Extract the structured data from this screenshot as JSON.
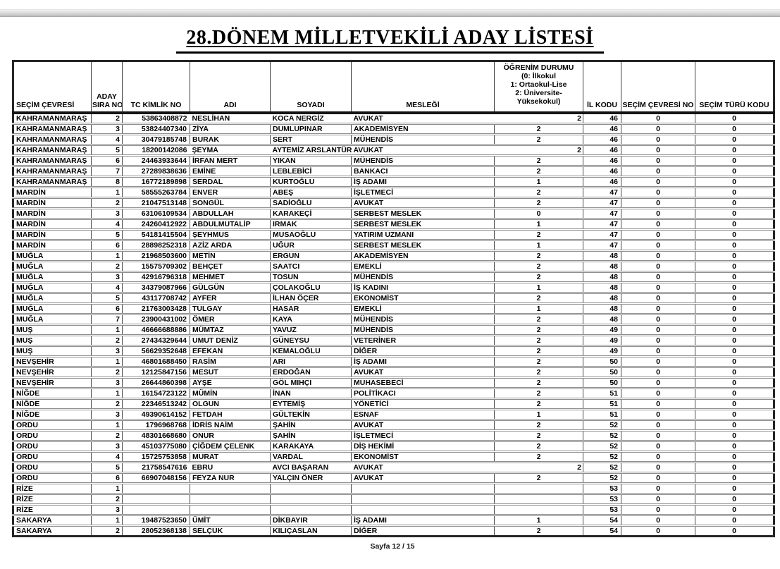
{
  "page": {
    "title": "28.DÖNEM MİLLETVEKİLİ ADAY LİSTESİ",
    "footer": "Sayfa 12 / 15"
  },
  "table": {
    "header": {
      "secim_cevresi": "SEÇİM ÇEVRESİ",
      "aday_sira_line1": "ADAY",
      "aday_sira_line2": "SIRA NO",
      "tc_kimlik": "TC KİMLİK NO",
      "adi": "ADI",
      "soyadi": "SOYADI",
      "meslegi": "MESLEĞİ",
      "ogrenim_lines": [
        "ÖĞRENİM DURUMU",
        "(0: İlkokul",
        "1: Ortaokul-Lise",
        "2: Üniversite-",
        "Yüksekokul)"
      ],
      "il_kodu": "İL KODU",
      "secim_cevresi_no": "SEÇİM ÇEVRESİ NO",
      "secim_turu_kodu": "SEÇİM TÜRÜ KODU"
    },
    "rows": [
      {
        "cevre": "KAHRAMANMARAŞ",
        "sira": "2",
        "tc": "53863408872",
        "adi": "NESLİHAN",
        "soyadi": "KOCA NERGİZ",
        "meslek": "AVUKAT",
        "ogrenim": "2",
        "il": "46",
        "cevre_no": "0",
        "tur": "0",
        "merged": true
      },
      {
        "cevre": "KAHRAMANMARAŞ",
        "sira": "3",
        "tc": "53824407340",
        "adi": "ZİYA",
        "soyadi": "DUMLUPINAR",
        "meslek": "AKADEMİSYEN",
        "ogrenim": "2",
        "il": "46",
        "cevre_no": "0",
        "tur": "0"
      },
      {
        "cevre": "KAHRAMANMARAŞ",
        "sira": "4",
        "tc": "30479185748",
        "adi": "BURAK",
        "soyadi": "SERT",
        "meslek": "MÜHENDİS",
        "ogrenim": "2",
        "il": "46",
        "cevre_no": "0",
        "tur": "0"
      },
      {
        "cevre": "KAHRAMANMARAŞ",
        "sira": "5",
        "tc": "18200142086",
        "adi": "ŞEYMA",
        "soyadi": "AYTEMİZ ARSLANTÜRK",
        "meslek": "AVUKAT",
        "ogrenim": "2",
        "il": "46",
        "cevre_no": "0",
        "tur": "0",
        "merged": true
      },
      {
        "cevre": "KAHRAMANMARAŞ",
        "sira": "6",
        "tc": "24463933644",
        "adi": "İRFAN MERT",
        "soyadi": "YIKAN",
        "meslek": "MÜHENDİS",
        "ogrenim": "2",
        "il": "46",
        "cevre_no": "0",
        "tur": "0"
      },
      {
        "cevre": "KAHRAMANMARAŞ",
        "sira": "7",
        "tc": "27289838636",
        "adi": "EMİNE",
        "soyadi": "LEBLEBİCİ",
        "meslek": "BANKACI",
        "ogrenim": "2",
        "il": "46",
        "cevre_no": "0",
        "tur": "0"
      },
      {
        "cevre": "KAHRAMANMARAŞ",
        "sira": "8",
        "tc": "16772189898",
        "adi": "SERDAL",
        "soyadi": "KURTOĞLU",
        "meslek": "İŞ ADAMI",
        "ogrenim": "1",
        "il": "46",
        "cevre_no": "0",
        "tur": "0"
      },
      {
        "cevre": "MARDİN",
        "sira": "1",
        "tc": "58555263784",
        "adi": "ENVER",
        "soyadi": "ABEŞ",
        "meslek": "İŞLETMECİ",
        "ogrenim": "2",
        "il": "47",
        "cevre_no": "0",
        "tur": "0"
      },
      {
        "cevre": "MARDİN",
        "sira": "2",
        "tc": "21047513148",
        "adi": "SONGÜL",
        "soyadi": "SADİOĞLU",
        "meslek": "AVUKAT",
        "ogrenim": "2",
        "il": "47",
        "cevre_no": "0",
        "tur": "0"
      },
      {
        "cevre": "MARDİN",
        "sira": "3",
        "tc": "63106109534",
        "adi": "ABDULLAH",
        "soyadi": "KARAKEÇİ",
        "meslek": "SERBEST MESLEK",
        "ogrenim": "0",
        "il": "47",
        "cevre_no": "0",
        "tur": "0"
      },
      {
        "cevre": "MARDİN",
        "sira": "4",
        "tc": "24260412922",
        "adi": "ABDULMUTALİP",
        "soyadi": "IRMAK",
        "meslek": "SERBEST MESLEK",
        "ogrenim": "1",
        "il": "47",
        "cevre_no": "0",
        "tur": "0"
      },
      {
        "cevre": "MARDİN",
        "sira": "5",
        "tc": "54181415504",
        "adi": "ŞEYHMUS",
        "soyadi": "MUSAOĞLU",
        "meslek": "YATIRIM UZMANI",
        "ogrenim": "2",
        "il": "47",
        "cevre_no": "0",
        "tur": "0"
      },
      {
        "cevre": "MARDİN",
        "sira": "6",
        "tc": "28898252318",
        "adi": "AZİZ ARDA",
        "soyadi": "UĞUR",
        "meslek": "SERBEST MESLEK",
        "ogrenim": "1",
        "il": "47",
        "cevre_no": "0",
        "tur": "0"
      },
      {
        "cevre": "MUĞLA",
        "sira": "1",
        "tc": "21968503600",
        "adi": "METİN",
        "soyadi": "ERGUN",
        "meslek": "AKADEMİSYEN",
        "ogrenim": "2",
        "il": "48",
        "cevre_no": "0",
        "tur": "0"
      },
      {
        "cevre": "MUĞLA",
        "sira": "2",
        "tc": "15575709302",
        "adi": "BEHÇET",
        "soyadi": "SAATCI",
        "meslek": "EMEKLİ",
        "ogrenim": "2",
        "il": "48",
        "cevre_no": "0",
        "tur": "0"
      },
      {
        "cevre": "MUĞLA",
        "sira": "3",
        "tc": "42916796318",
        "adi": "MEHMET",
        "soyadi": "TOSUN",
        "meslek": "MÜHENDİS",
        "ogrenim": "2",
        "il": "48",
        "cevre_no": "0",
        "tur": "0"
      },
      {
        "cevre": "MUĞLA",
        "sira": "4",
        "tc": "34379087966",
        "adi": "GÜLGÜN",
        "soyadi": "ÇOLAKOĞLU",
        "meslek": "İŞ KADINI",
        "ogrenim": "1",
        "il": "48",
        "cevre_no": "0",
        "tur": "0"
      },
      {
        "cevre": "MUĞLA",
        "sira": "5",
        "tc": "43117708742",
        "adi": "AYFER",
        "soyadi": "İLHAN ÖÇER",
        "meslek": "EKONOMİST",
        "ogrenim": "2",
        "il": "48",
        "cevre_no": "0",
        "tur": "0"
      },
      {
        "cevre": "MUĞLA",
        "sira": "6",
        "tc": "21763003428",
        "adi": "TULGAY",
        "soyadi": "HASAR",
        "meslek": "EMEKLİ",
        "ogrenim": "1",
        "il": "48",
        "cevre_no": "0",
        "tur": "0"
      },
      {
        "cevre": "MUĞLA",
        "sira": "7",
        "tc": "23900431002",
        "adi": "ÖMER",
        "soyadi": "KAYA",
        "meslek": "MÜHENDİS",
        "ogrenim": "2",
        "il": "48",
        "cevre_no": "0",
        "tur": "0"
      },
      {
        "cevre": "MUŞ",
        "sira": "1",
        "tc": "46666688886",
        "adi": "MÜMTAZ",
        "soyadi": "YAVUZ",
        "meslek": "MÜHENDİS",
        "ogrenim": "2",
        "il": "49",
        "cevre_no": "0",
        "tur": "0"
      },
      {
        "cevre": "MUŞ",
        "sira": "2",
        "tc": "27434329644",
        "adi": "UMUT DENİZ",
        "soyadi": "GÜNEYSU",
        "meslek": "VETERİNER",
        "ogrenim": "2",
        "il": "49",
        "cevre_no": "0",
        "tur": "0"
      },
      {
        "cevre": "MUŞ",
        "sira": "3",
        "tc": "56629352648",
        "adi": "EFEKAN",
        "soyadi": "KEMALOĞLU",
        "meslek": "DİĞER",
        "ogrenim": "2",
        "il": "49",
        "cevre_no": "0",
        "tur": "0"
      },
      {
        "cevre": "NEVŞEHİR",
        "sira": "1",
        "tc": "46801688450",
        "adi": "RASİM",
        "soyadi": "ARI",
        "meslek": "İŞ ADAMI",
        "ogrenim": "2",
        "il": "50",
        "cevre_no": "0",
        "tur": "0"
      },
      {
        "cevre": "NEVŞEHİR",
        "sira": "2",
        "tc": "12125847156",
        "adi": "MESUT",
        "soyadi": "ERDOĞAN",
        "meslek": "AVUKAT",
        "ogrenim": "2",
        "il": "50",
        "cevre_no": "0",
        "tur": "0"
      },
      {
        "cevre": "NEVŞEHİR",
        "sira": "3",
        "tc": "26644860398",
        "adi": "AYŞE",
        "soyadi": "GÖL MIHÇI",
        "meslek": "MUHASEBECİ",
        "ogrenim": "2",
        "il": "50",
        "cevre_no": "0",
        "tur": "0"
      },
      {
        "cevre": "NİĞDE",
        "sira": "1",
        "tc": "16154723122",
        "adi": "MÜMİN",
        "soyadi": "İNAN",
        "meslek": "POLİTİKACI",
        "ogrenim": "2",
        "il": "51",
        "cevre_no": "0",
        "tur": "0"
      },
      {
        "cevre": "NİĞDE",
        "sira": "2",
        "tc": "22346513242",
        "adi": "OLGUN",
        "soyadi": "EYTEMİŞ",
        "meslek": "YÖNETİCİ",
        "ogrenim": "2",
        "il": "51",
        "cevre_no": "0",
        "tur": "0"
      },
      {
        "cevre": "NİĞDE",
        "sira": "3",
        "tc": "49390614152",
        "adi": "FETDAH",
        "soyadi": "GÜLTEKİN",
        "meslek": "ESNAF",
        "ogrenim": "1",
        "il": "51",
        "cevre_no": "0",
        "tur": "0"
      },
      {
        "cevre": "ORDU",
        "sira": "1",
        "tc": "1796968768",
        "adi": "İDRİS NAİM",
        "soyadi": "ŞAHİN",
        "meslek": "AVUKAT",
        "ogrenim": "2",
        "il": "52",
        "cevre_no": "0",
        "tur": "0"
      },
      {
        "cevre": "ORDU",
        "sira": "2",
        "tc": "48301668680",
        "adi": "ONUR",
        "soyadi": "ŞAHİN",
        "meslek": "İŞLETMECİ",
        "ogrenim": "2",
        "il": "52",
        "cevre_no": "0",
        "tur": "0"
      },
      {
        "cevre": "ORDU",
        "sira": "3",
        "tc": "45103775080",
        "adi": "ÇİĞDEM ÇELENK",
        "soyadi": "KARAKAYA",
        "meslek": "DİŞ HEKİMİ",
        "ogrenim": "2",
        "il": "52",
        "cevre_no": "0",
        "tur": "0"
      },
      {
        "cevre": "ORDU",
        "sira": "4",
        "tc": "15725753858",
        "adi": "MURAT",
        "soyadi": "VARDAL",
        "meslek": "EKONOMİST",
        "ogrenim": "2",
        "il": "52",
        "cevre_no": "0",
        "tur": "0"
      },
      {
        "cevre": "ORDU",
        "sira": "5",
        "tc": "21758547616",
        "adi": "EBRU",
        "soyadi": "AVCI BAŞARAN",
        "meslek": "AVUKAT",
        "ogrenim": "2",
        "il": "52",
        "cevre_no": "0",
        "tur": "0",
        "merged": true
      },
      {
        "cevre": "ORDU",
        "sira": "6",
        "tc": "66907048156",
        "adi": "FEYZA NUR",
        "soyadi": "YALÇIN ÖNER",
        "meslek": "AVUKAT",
        "ogrenim": "2",
        "il": "52",
        "cevre_no": "0",
        "tur": "0"
      },
      {
        "cevre": "RİZE",
        "sira": "1",
        "tc": "",
        "adi": "",
        "soyadi": "",
        "meslek": "",
        "ogrenim": "",
        "il": "53",
        "cevre_no": "0",
        "tur": "0"
      },
      {
        "cevre": "RİZE",
        "sira": "2",
        "tc": "",
        "adi": "",
        "soyadi": "",
        "meslek": "",
        "ogrenim": "",
        "il": "53",
        "cevre_no": "0",
        "tur": "0"
      },
      {
        "cevre": "RİZE",
        "sira": "3",
        "tc": "",
        "adi": "",
        "soyadi": "",
        "meslek": "",
        "ogrenim": "",
        "il": "53",
        "cevre_no": "0",
        "tur": "0"
      },
      {
        "cevre": "SAKARYA",
        "sira": "1",
        "tc": "19487523650",
        "adi": "ÜMİT",
        "soyadi": "DİKBAYIR",
        "meslek": "İŞ ADAMI",
        "ogrenim": "1",
        "il": "54",
        "cevre_no": "0",
        "tur": "0"
      },
      {
        "cevre": "SAKARYA",
        "sira": "2",
        "tc": "28052368138",
        "adi": "SELÇUK",
        "soyadi": "KILIÇASLAN",
        "meslek": "DİĞER",
        "ogrenim": "2",
        "il": "54",
        "cevre_no": "0",
        "tur": "0"
      }
    ]
  }
}
